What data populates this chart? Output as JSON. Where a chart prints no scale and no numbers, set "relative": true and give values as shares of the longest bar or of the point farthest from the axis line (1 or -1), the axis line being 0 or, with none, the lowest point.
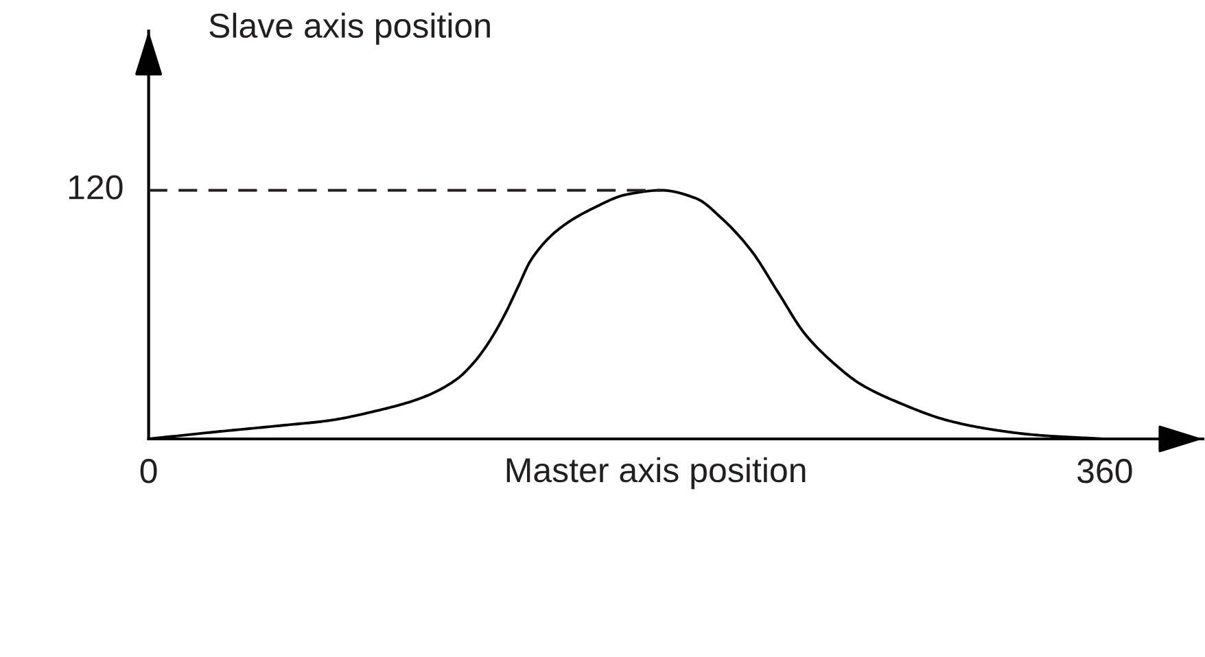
{
  "chart_data": {
    "type": "line",
    "relative": true,
    "xlabel": "Master axis position",
    "ylabel": "Slave axis position",
    "xlim": [
      0,
      397
    ],
    "xticks": [
      0,
      360
    ],
    "annotations": [
      {
        "text": "120",
        "x": 0,
        "y": 1
      }
    ],
    "series": [
      {
        "color": "#000000",
        "x": [
          0,
          25,
          51,
          68,
          85,
          103,
          116,
          123,
          128,
          134,
          139,
          144,
          154,
          168,
          180,
          193,
          206,
          216,
          227,
          237,
          247,
          258,
          268,
          282,
          301,
          318,
          335,
          360
        ],
        "values": [
          0,
          0.028,
          0.055,
          0.074,
          0.111,
          0.166,
          0.24,
          0.314,
          0.387,
          0.498,
          0.609,
          0.72,
          0.84,
          0.931,
          0.983,
          1,
          0.968,
          0.885,
          0.756,
          0.59,
          0.424,
          0.304,
          0.221,
          0.148,
          0.074,
          0.037,
          0.015,
          0
        ]
      },
      {
        "color": "#231f20",
        "line_style": "dashed",
        "x": [
          0,
          193
        ],
        "values": [
          1,
          1
        ]
      }
    ]
  }
}
